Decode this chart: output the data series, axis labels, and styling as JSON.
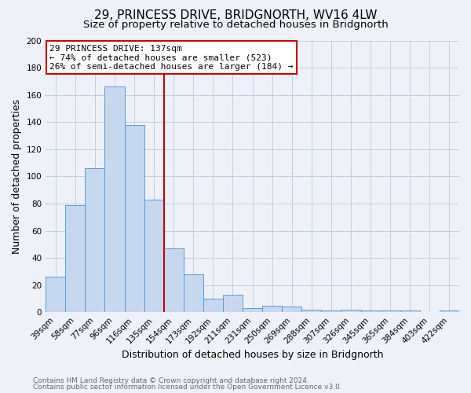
{
  "title": "29, PRINCESS DRIVE, BRIDGNORTH, WV16 4LW",
  "subtitle": "Size of property relative to detached houses in Bridgnorth",
  "xlabel": "Distribution of detached houses by size in Bridgnorth",
  "ylabel": "Number of detached properties",
  "bar_labels": [
    "39sqm",
    "58sqm",
    "77sqm",
    "96sqm",
    "116sqm",
    "135sqm",
    "154sqm",
    "173sqm",
    "192sqm",
    "211sqm",
    "231sqm",
    "250sqm",
    "269sqm",
    "288sqm",
    "307sqm",
    "326sqm",
    "345sqm",
    "365sqm",
    "384sqm",
    "403sqm",
    "422sqm"
  ],
  "bar_values": [
    26,
    79,
    106,
    166,
    138,
    83,
    47,
    28,
    10,
    13,
    3,
    5,
    4,
    2,
    1,
    2,
    1,
    1,
    1,
    0,
    1
  ],
  "bar_color": "#c5d8f0",
  "bar_edge_color": "#5b9bd5",
  "ylim": [
    0,
    200
  ],
  "yticks": [
    0,
    20,
    40,
    60,
    80,
    100,
    120,
    140,
    160,
    180,
    200
  ],
  "vline_x": 5.5,
  "vline_color": "#cc0000",
  "annotation_line1": "29 PRINCESS DRIVE: 137sqm",
  "annotation_line2": "← 74% of detached houses are smaller (523)",
  "annotation_line3": "26% of semi-detached houses are larger (184) →",
  "annotation_box_color": "#cc0000",
  "annotation_box_fill": "#ffffff",
  "footer1": "Contains HM Land Registry data © Crown copyright and database right 2024.",
  "footer2": "Contains public sector information licensed under the Open Government Licence v3.0.",
  "bg_color": "#eef2f8",
  "plot_bg_color": "#eef2f8",
  "title_fontsize": 11,
  "subtitle_fontsize": 9.5,
  "axis_label_fontsize": 9,
  "tick_fontsize": 7.5,
  "footer_fontsize": 6.5,
  "annotation_fontsize": 8
}
